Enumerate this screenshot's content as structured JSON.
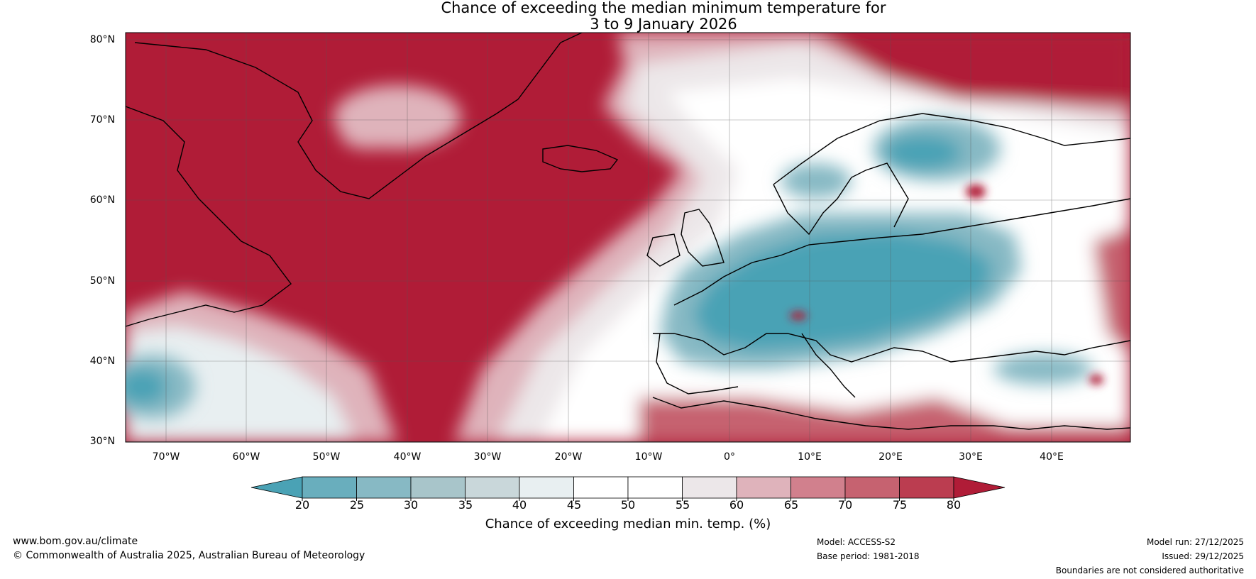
{
  "title": {
    "line1": "Chance of exceeding the median minimum temperature for",
    "line2": "3 to 9 January 2026"
  },
  "map": {
    "lat_labels": [
      "80°N",
      "70°N",
      "60°N",
      "50°N",
      "40°N",
      "30°N"
    ],
    "lon_labels": [
      "70°W",
      "60°W",
      "50°W",
      "40°W",
      "30°W",
      "20°W",
      "10°W",
      "0°",
      "10°E",
      "20°E",
      "30°E",
      "40°E"
    ],
    "colors": {
      "very_warm": "#b01c37",
      "cold": "#4aa2b5",
      "neutral": "#ffffff",
      "coast": "#000000",
      "border": "#808080"
    }
  },
  "colorbar": {
    "ticks": [
      "20",
      "25",
      "30",
      "35",
      "40",
      "45",
      "50",
      "55",
      "60",
      "65",
      "70",
      "75",
      "80"
    ],
    "label": "Chance of exceeding median min. temp. (%)",
    "colors": [
      "#4aa2b5",
      "#69aebd",
      "#87b9c4",
      "#a8c5ca",
      "#c9d7da",
      "#e8eff1",
      "#ffffff",
      "#ffffff",
      "#ece7e9",
      "#dfb3bb",
      "#d1808d",
      "#c66270",
      "#bb3d50",
      "#b01c37"
    ]
  },
  "footer": {
    "website": "www.bom.gov.au/climate",
    "copyright": "© Commonwealth of Australia 2025, Australian Bureau of Meteorology",
    "model": "Model: ACCESS-S2",
    "base_period": "Base period: 1981-2018",
    "model_run": "Model run: 27/12/2025",
    "issued": "Issued: 29/12/2025",
    "disclaimer": "Boundaries are not considered authoritative"
  }
}
